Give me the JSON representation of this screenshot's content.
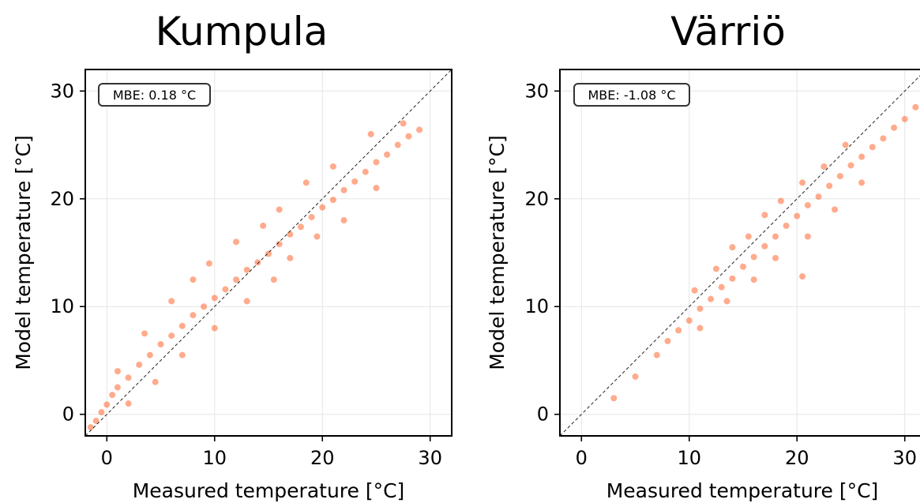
{
  "chart_data": [
    {
      "type": "scatter",
      "title": "Kumpula",
      "xlabel": "Measured temperature [°C]",
      "ylabel": "Model temperature [°C]",
      "xlim": [
        -2,
        32
      ],
      "ylim": [
        -2,
        32
      ],
      "xticks": [
        0,
        10,
        20,
        30
      ],
      "yticks": [
        0,
        10,
        20,
        30
      ],
      "grid": true,
      "identity_line": true,
      "annotation": "MBE: 0.18 °C",
      "point_color": "#ff4500",
      "series": [
        {
          "x": [
            -1.5,
            -1.0,
            -0.5,
            0.0,
            0.5,
            1.0,
            2.0,
            3.0,
            4.0,
            5.0,
            6.0,
            7.0,
            8.0,
            9.0,
            10.0,
            11.0,
            12.0,
            13.0,
            14.0,
            15.0,
            16.0,
            17.0,
            18.0,
            19.0,
            20.0,
            21.0,
            22.0,
            23.0,
            24.0,
            25.0,
            26.0,
            27.0,
            28.0,
            29.0,
            1.0,
            3.5,
            6.0,
            8.0,
            9.5,
            12.0,
            14.5,
            16.0,
            18.5,
            21.0,
            24.5,
            27.5,
            2.0,
            4.5,
            7.0,
            10.0,
            13.0,
            15.5,
            17.0,
            19.5,
            22.0,
            25.0
          ],
          "y": [
            -1.2,
            -0.6,
            0.2,
            0.9,
            1.8,
            2.5,
            3.4,
            4.6,
            5.5,
            6.5,
            7.3,
            8.2,
            9.2,
            10.0,
            10.8,
            11.6,
            12.5,
            13.4,
            14.1,
            14.9,
            15.8,
            16.7,
            17.4,
            18.3,
            19.2,
            19.9,
            20.8,
            21.6,
            22.5,
            23.4,
            24.1,
            25.0,
            25.8,
            26.4,
            4.0,
            7.5,
            10.5,
            12.5,
            14.0,
            16.0,
            17.5,
            19.0,
            21.5,
            23.0,
            26.0,
            27.0,
            1.0,
            3.0,
            5.5,
            8.0,
            10.5,
            12.5,
            14.5,
            16.5,
            18.0,
            21.0
          ]
        }
      ]
    },
    {
      "type": "scatter",
      "title": "Värriö",
      "xlabel": "Measured temperature [°C]",
      "ylabel": "Model temperature [°C]",
      "xlim": [
        -2,
        32
      ],
      "ylim": [
        -2,
        32
      ],
      "xticks": [
        0,
        10,
        20,
        30
      ],
      "yticks": [
        0,
        10,
        20,
        30
      ],
      "grid": true,
      "identity_line": true,
      "annotation": "MBE: -1.08 °C",
      "point_color": "#ff4500",
      "series": [
        {
          "x": [
            3.0,
            5.0,
            7.0,
            8.0,
            9.0,
            10.0,
            11.0,
            12.0,
            13.0,
            14.0,
            15.0,
            16.0,
            17.0,
            18.0,
            19.0,
            20.0,
            21.0,
            22.0,
            23.0,
            24.0,
            25.0,
            26.0,
            27.0,
            28.0,
            29.0,
            30.0,
            31.0,
            10.5,
            12.5,
            14.0,
            15.5,
            17.0,
            18.5,
            20.5,
            22.5,
            24.5,
            11.0,
            13.5,
            16.0,
            18.0,
            21.0,
            23.5,
            26.0,
            20.5
          ],
          "y": [
            1.5,
            3.5,
            5.5,
            6.8,
            7.8,
            8.7,
            9.8,
            10.7,
            11.8,
            12.6,
            13.7,
            14.6,
            15.6,
            16.5,
            17.5,
            18.4,
            19.4,
            20.2,
            21.2,
            22.1,
            23.1,
            23.9,
            24.8,
            25.6,
            26.6,
            27.4,
            28.5,
            11.5,
            13.5,
            15.5,
            16.5,
            18.5,
            19.8,
            21.5,
            23.0,
            25.0,
            8.0,
            10.5,
            12.5,
            14.5,
            16.5,
            19.0,
            21.5,
            12.8
          ]
        }
      ]
    }
  ]
}
